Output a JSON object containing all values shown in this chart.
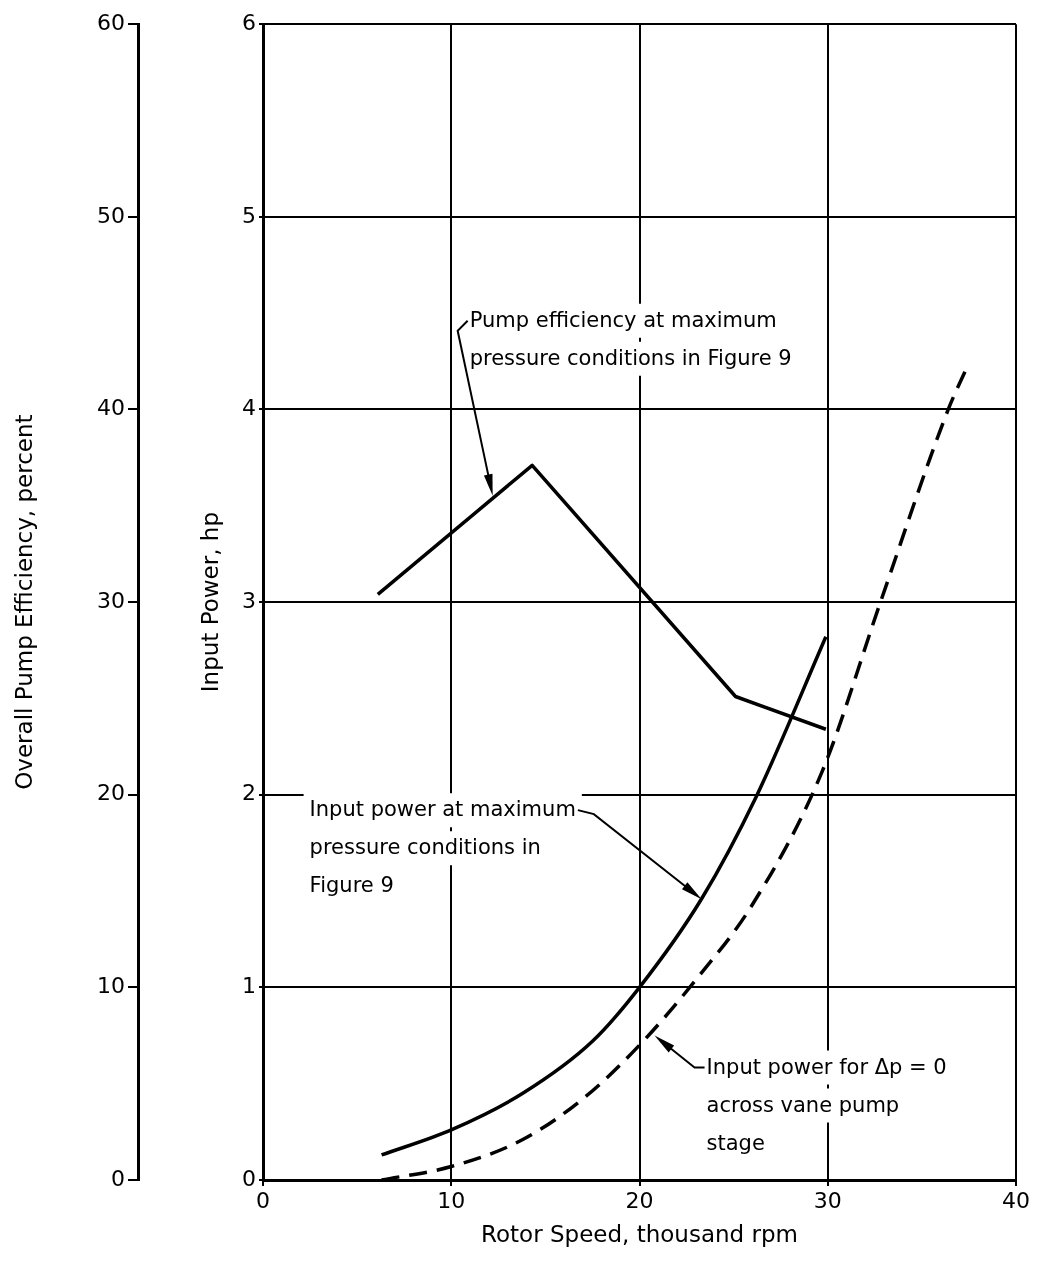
{
  "chart_data": {
    "type": "line",
    "xlabel": "Rotor Speed, thousand rpm",
    "ylabel": "Input Power, hp",
    "y2label": "Overall Pump Efficiency, percent",
    "xlim": [
      0,
      40
    ],
    "xticks": [
      0,
      10,
      20,
      30,
      40
    ],
    "ylim": [
      0,
      6
    ],
    "yticks": [
      0,
      1,
      2,
      3,
      4,
      5,
      6
    ],
    "y2lim": [
      0,
      60
    ],
    "y2ticks": [
      0,
      10,
      20,
      30,
      40,
      50,
      60
    ],
    "grid": true,
    "legend": false,
    "marker": "none",
    "series": [
      {
        "color": "#000000",
        "axis": "y2",
        "line_style": "solid",
        "x": [
          6.1,
          14.3,
          25.1,
          29.9
        ],
        "values": [
          30.4,
          37.1,
          25.1,
          23.4
        ]
      },
      {
        "color": "#000000",
        "line_style": "solid",
        "x": [
          6.3,
          10,
          13.8,
          17.5,
          20,
          23.3,
          26.2,
          29.9
        ],
        "values": [
          0.13,
          0.26,
          0.45,
          0.72,
          1.0,
          1.46,
          1.99,
          2.82
        ]
      },
      {
        "color": "#000000",
        "line_style": "dashed",
        "x": [
          6.3,
          10,
          13.8,
          17.1,
          20,
          23,
          26,
          29.7,
          32.8,
          36.4,
          37.4
        ],
        "values": [
          0.0,
          0.07,
          0.21,
          0.43,
          0.7,
          1.04,
          1.43,
          2.12,
          3.0,
          4.0,
          4.22
        ]
      }
    ],
    "annotations": [
      "Pump efficiency at maximum\npressure conditions in Figure 9",
      "Input power at maximum\npressure conditions in\nFigure 9",
      {
        "text": "Input power for Δp = 0\nacross vane pump\nstage",
        "x": 20.8,
        "y": 0.75
      }
    ]
  }
}
